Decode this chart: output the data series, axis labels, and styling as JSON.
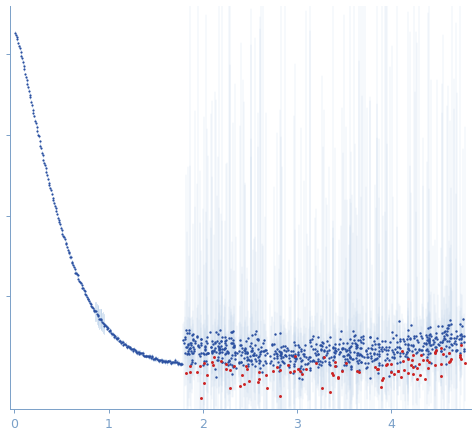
{
  "title": "",
  "xlabel": "",
  "ylabel": "",
  "xlim": [
    -0.05,
    4.85
  ],
  "ylim": [
    -0.08,
    0.92
  ],
  "x_ticks": [
    0,
    1,
    2,
    3,
    4
  ],
  "background_color": "#ffffff",
  "dot_color_main": "#2a4fa0",
  "dot_color_outlier": "#cc2222",
  "error_bar_color": "#b8cfe8",
  "axis_color": "#7aa0c8",
  "tick_color": "#7aa0c8",
  "seed": 42
}
